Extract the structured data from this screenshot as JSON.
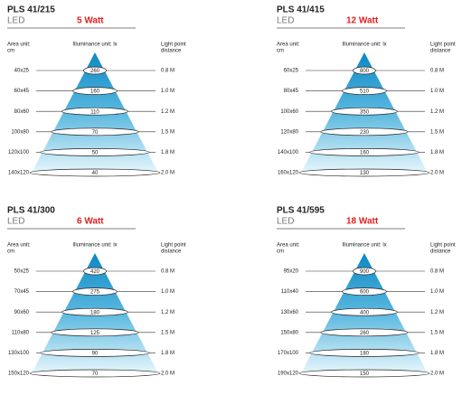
{
  "panels": [
    {
      "title": "PLS 41/215",
      "subtitle": "LED",
      "watt": "5 Watt",
      "area_unit": [
        "Area unit:",
        "cm"
      ],
      "illuminance_unit": "Illuminance unit: lx",
      "distance_label": [
        "Light point",
        "distance"
      ],
      "rows": [
        [
          "40x25",
          "260",
          "0.8 M"
        ],
        [
          "60x45",
          "160",
          "1.0 M"
        ],
        [
          "80x60",
          "110",
          "1.2 M"
        ],
        [
          "100x80",
          "70",
          "1.5 M"
        ],
        [
          "120x100",
          "50",
          "1.8 M"
        ],
        [
          "140x120",
          "40",
          "2.0 M"
        ]
      ]
    },
    {
      "title": "PLS 41/415",
      "subtitle": "LED",
      "watt": "12 Watt",
      "area_unit": [
        "Area unit:",
        "cm"
      ],
      "illuminance_unit": "Illuminance unit: lx",
      "distance_label": [
        "Light point",
        "distance"
      ],
      "rows": [
        [
          "60x25",
          "800",
          "0.8 M"
        ],
        [
          "80x45",
          "510",
          "1.0 M"
        ],
        [
          "100x60",
          "350",
          "1.2 M"
        ],
        [
          "120x80",
          "230",
          "1.5 M"
        ],
        [
          "140x100",
          "160",
          "1.8 M"
        ],
        [
          "160x120",
          "130",
          "2.0 M"
        ]
      ]
    },
    {
      "title": "PLS 41/300",
      "subtitle": "LED",
      "watt": "6 Watt",
      "area_unit": [
        "Area unit:",
        "cm"
      ],
      "illuminance_unit": "Illuminance unit: lx",
      "distance_label": [
        "Light point",
        "distance"
      ],
      "rows": [
        [
          "50x25",
          "420",
          "0.8 M"
        ],
        [
          "70x45",
          "275",
          "1.0 M"
        ],
        [
          "90x60",
          "180",
          "1.2 M"
        ],
        [
          "110x80",
          "125",
          "1.5 M"
        ],
        [
          "130x100",
          "90",
          "1.8 M"
        ],
        [
          "150x120",
          "70",
          "2.0 M"
        ]
      ]
    },
    {
      "title": "PLS 41/595",
      "subtitle": "LED",
      "watt": "18 Watt",
      "area_unit": [
        "Area unit:",
        "cm"
      ],
      "illuminance_unit": "Illuminance unit: lx",
      "distance_label": [
        "Light point",
        "distance"
      ],
      "rows": [
        [
          "95x20",
          "900",
          "0.8 M"
        ],
        [
          "110x40",
          "600",
          "1.0 M"
        ],
        [
          "130x60",
          "400",
          "1.2 M"
        ],
        [
          "150x80",
          "260",
          "1.5 M"
        ],
        [
          "170x100",
          "180",
          "1.8 M"
        ],
        [
          "190x120",
          "150",
          "2.0 M"
        ]
      ]
    }
  ]
}
